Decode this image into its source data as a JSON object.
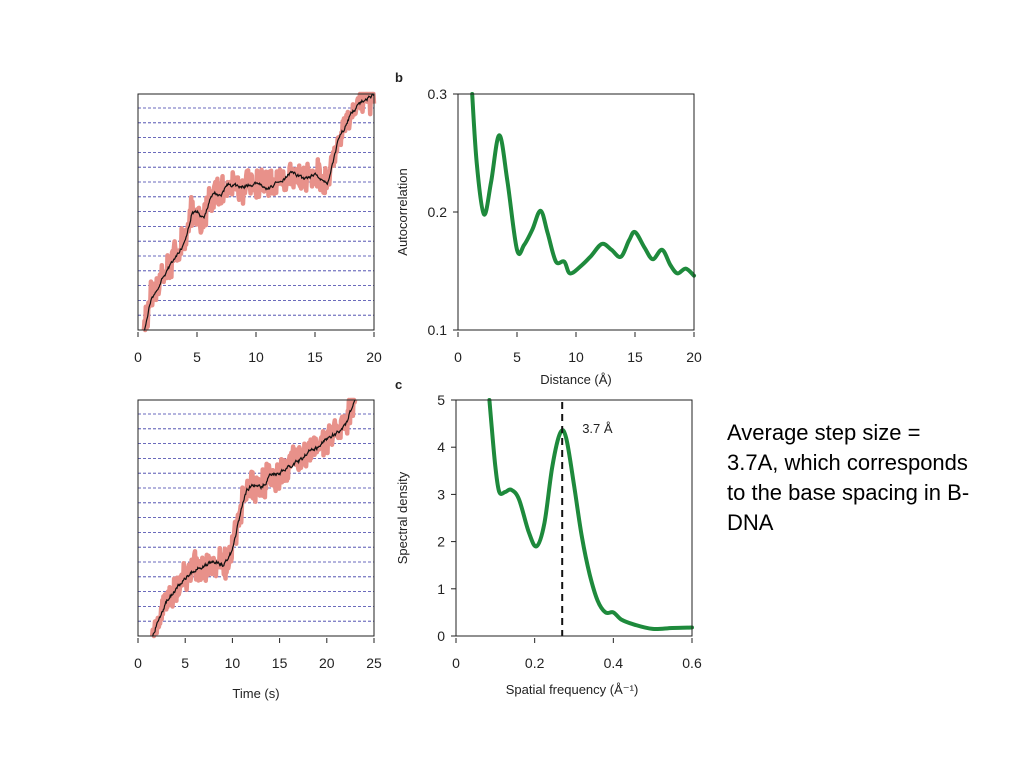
{
  "note": "Average step size = 3.7A, which corresponds to the base spacing in B-DNA",
  "colors": {
    "raw_trace": "#e8918a",
    "filtered_trace": "#111111",
    "step_grid": "#3a3aa6",
    "curve": "#1e8a3c",
    "axis": "#222222"
  },
  "chart_data": [
    {
      "type": "line",
      "panel": "a-top",
      "xlabel": "",
      "ylabel": "",
      "xlim": [
        0,
        20
      ],
      "xticks": [
        "0",
        "5",
        "10",
        "15",
        "20"
      ],
      "step_lines": 15,
      "series": [
        {
          "x": [
            0.5,
            1,
            2,
            3,
            4,
            4.5,
            5,
            5.5,
            6,
            6.5,
            7,
            7.5,
            8,
            9,
            10,
            11,
            12,
            13,
            14,
            15,
            16,
            16.5,
            17,
            17.5,
            18,
            19,
            20
          ],
          "y": [
            0.0,
            0.12,
            0.22,
            0.3,
            0.38,
            0.5,
            0.5,
            0.47,
            0.55,
            0.58,
            0.57,
            0.62,
            0.61,
            0.61,
            0.62,
            0.6,
            0.63,
            0.67,
            0.64,
            0.66,
            0.62,
            0.72,
            0.82,
            0.86,
            0.92,
            0.97,
            1.0
          ]
        }
      ]
    },
    {
      "type": "line",
      "panel": "b",
      "panel_label": "b",
      "xlabel": "Distance (Å)",
      "ylabel": "Autocorrelation",
      "xlim": [
        0,
        20
      ],
      "ylim": [
        0.1,
        0.3
      ],
      "xticks": [
        "0",
        "5",
        "10",
        "15",
        "20"
      ],
      "yticks": [
        "0.1",
        "0.2",
        "0.3"
      ],
      "series": [
        {
          "x": [
            1.2,
            1.6,
            2.2,
            2.8,
            3.5,
            4.2,
            5.0,
            5.6,
            6.3,
            7.0,
            7.6,
            8.3,
            9.0,
            9.5,
            10.5,
            11.3,
            12.2,
            13.0,
            13.8,
            14.5,
            15.0,
            15.8,
            16.5,
            17.3,
            18.0,
            18.6,
            19.3,
            20.0
          ],
          "y": [
            0.3,
            0.24,
            0.198,
            0.225,
            0.265,
            0.225,
            0.168,
            0.172,
            0.185,
            0.201,
            0.182,
            0.158,
            0.158,
            0.148,
            0.155,
            0.163,
            0.173,
            0.168,
            0.162,
            0.176,
            0.183,
            0.17,
            0.16,
            0.168,
            0.155,
            0.148,
            0.152,
            0.146
          ]
        }
      ]
    },
    {
      "type": "line",
      "panel": "a-bottom",
      "xlabel": "Time (s)",
      "ylabel": "",
      "xlim": [
        0,
        25
      ],
      "xticks": [
        "0",
        "5",
        "10",
        "15",
        "20",
        "25"
      ],
      "step_lines": 15,
      "series": [
        {
          "x": [
            1.5,
            2,
            3,
            4,
            5,
            6,
            7,
            8,
            9,
            9.5,
            10,
            10.5,
            11,
            11.5,
            12,
            13,
            14,
            15,
            16,
            17,
            18,
            19,
            20,
            21,
            22,
            22.5,
            23
          ],
          "y": [
            0.0,
            0.06,
            0.15,
            0.2,
            0.25,
            0.28,
            0.3,
            0.32,
            0.3,
            0.33,
            0.37,
            0.47,
            0.56,
            0.62,
            0.64,
            0.63,
            0.68,
            0.69,
            0.72,
            0.74,
            0.78,
            0.8,
            0.84,
            0.86,
            0.9,
            0.96,
            1.0
          ]
        }
      ]
    },
    {
      "type": "line",
      "panel": "c",
      "panel_label": "c",
      "xlabel": "Spatial frequency (Å⁻¹)",
      "ylabel": "Spectral density",
      "xlim": [
        0,
        0.6
      ],
      "ylim": [
        0,
        5
      ],
      "xticks": [
        "0",
        "0.2",
        "0.4",
        "0.6"
      ],
      "yticks": [
        "0",
        "1",
        "2",
        "3",
        "4",
        "5"
      ],
      "marker": {
        "x": 0.27,
        "label": "3.7 Å"
      },
      "series": [
        {
          "x": [
            0.085,
            0.09,
            0.1,
            0.11,
            0.125,
            0.14,
            0.16,
            0.185,
            0.205,
            0.225,
            0.245,
            0.265,
            0.28,
            0.3,
            0.32,
            0.34,
            0.36,
            0.38,
            0.4,
            0.42,
            0.45,
            0.5,
            0.55,
            0.6
          ],
          "y": [
            5.0,
            4.5,
            3.6,
            3.05,
            3.05,
            3.1,
            2.9,
            2.2,
            1.9,
            2.4,
            3.6,
            4.3,
            4.2,
            3.2,
            2.1,
            1.3,
            0.75,
            0.5,
            0.5,
            0.35,
            0.25,
            0.15,
            0.17,
            0.18
          ]
        }
      ]
    }
  ]
}
